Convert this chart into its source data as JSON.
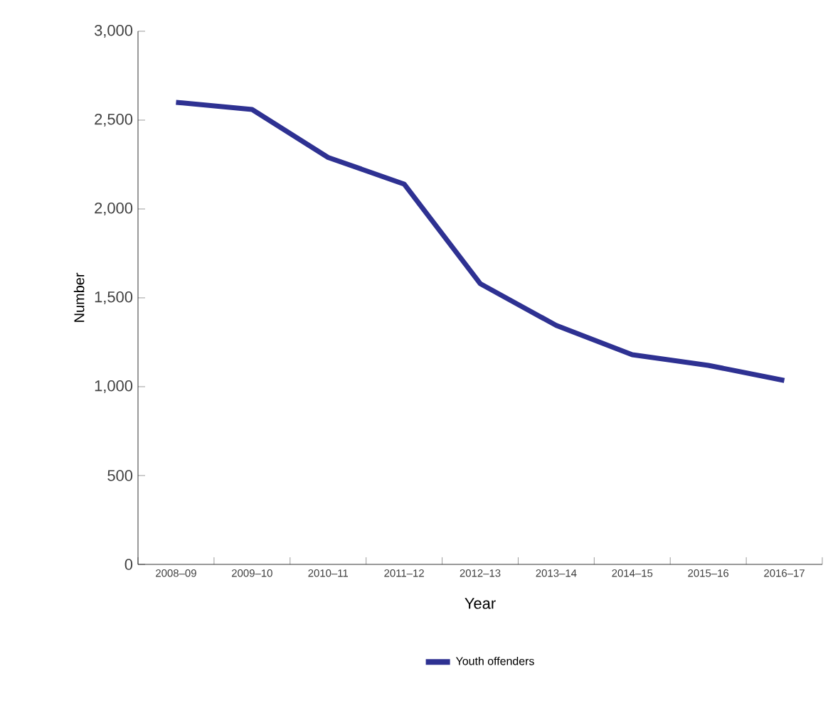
{
  "chart_data": {
    "type": "line",
    "xlabel": "Year",
    "ylabel": "Number",
    "categories": [
      "2008–09",
      "2009–10",
      "2010–11",
      "2011–12",
      "2012–13",
      "2013–14",
      "2014–15",
      "2015–16",
      "2016–17"
    ],
    "series": [
      {
        "name": "Youth offenders",
        "color": "#2e3192",
        "values": [
          2600,
          2560,
          2290,
          2140,
          1580,
          1345,
          1180,
          1120,
          1035
        ]
      }
    ],
    "ylim": [
      0,
      3000
    ],
    "yticks": [
      0,
      500,
      {
        "value": 1000,
        "label": "1,000"
      },
      {
        "value": 1500,
        "label": "1,500"
      },
      {
        "value": 2000,
        "label": "2,000"
      },
      {
        "value": 2500,
        "label": "2,500"
      },
      {
        "value": 3000,
        "label": "3,000"
      }
    ],
    "grid": false,
    "legend": "bottom",
    "marker": "none",
    "line_style": "solid"
  }
}
